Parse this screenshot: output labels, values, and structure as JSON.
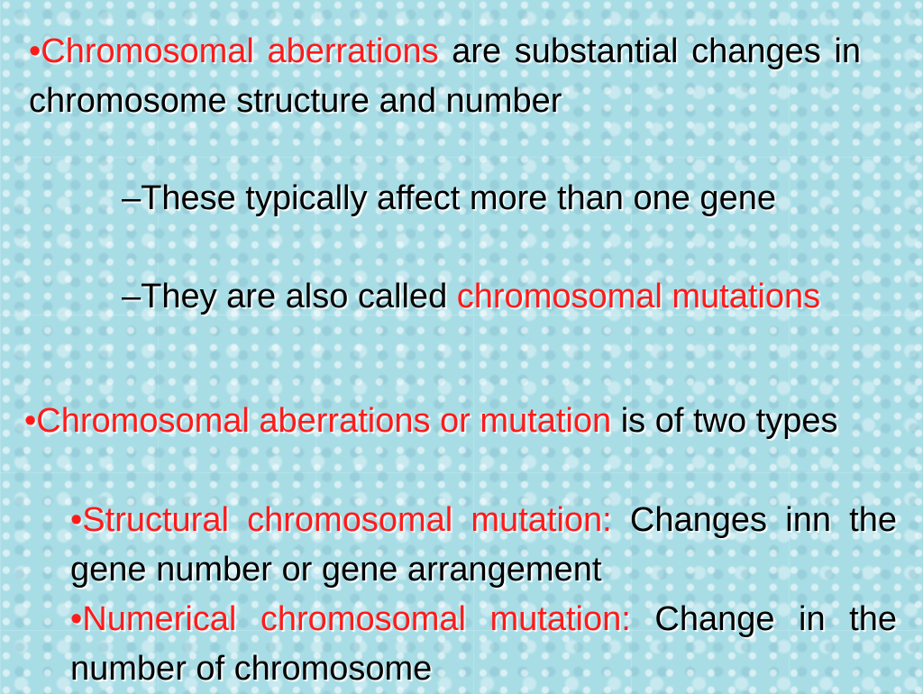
{
  "slide": {
    "paragraphs": [
      {
        "runs": [
          {
            "text": "•Chromosomal aberrations",
            "color": "#ff1a1a"
          },
          {
            "text": " are substantial changes in chromosome structure and number",
            "color": "#000000"
          }
        ]
      },
      {
        "runs": [
          {
            "text": "–These typically affect more than one gene",
            "color": "#000000"
          }
        ]
      },
      {
        "runs": [
          {
            "text": "–They are also called ",
            "color": "#000000"
          },
          {
            "text": "chromosomal mutations",
            "color": "#ff1a1a"
          }
        ]
      },
      {
        "runs": [
          {
            "text": "•Chromosomal aberrations or mutation",
            "color": "#ff1a1a"
          },
          {
            "text": " is of two types",
            "color": "#000000"
          }
        ]
      },
      {
        "runs": [
          {
            "text": "•Structural chromosomal mutation:",
            "color": "#ff1a1a"
          },
          {
            "text": " Changes inn the gene number or gene arrangement",
            "color": "#000000"
          }
        ]
      },
      {
        "runs": [
          {
            "text": "•Numerical chromosomal mutation:",
            "color": "#ff1a1a"
          },
          {
            "text": " Change in the number of chromosome",
            "color": "#000000"
          }
        ]
      }
    ]
  }
}
